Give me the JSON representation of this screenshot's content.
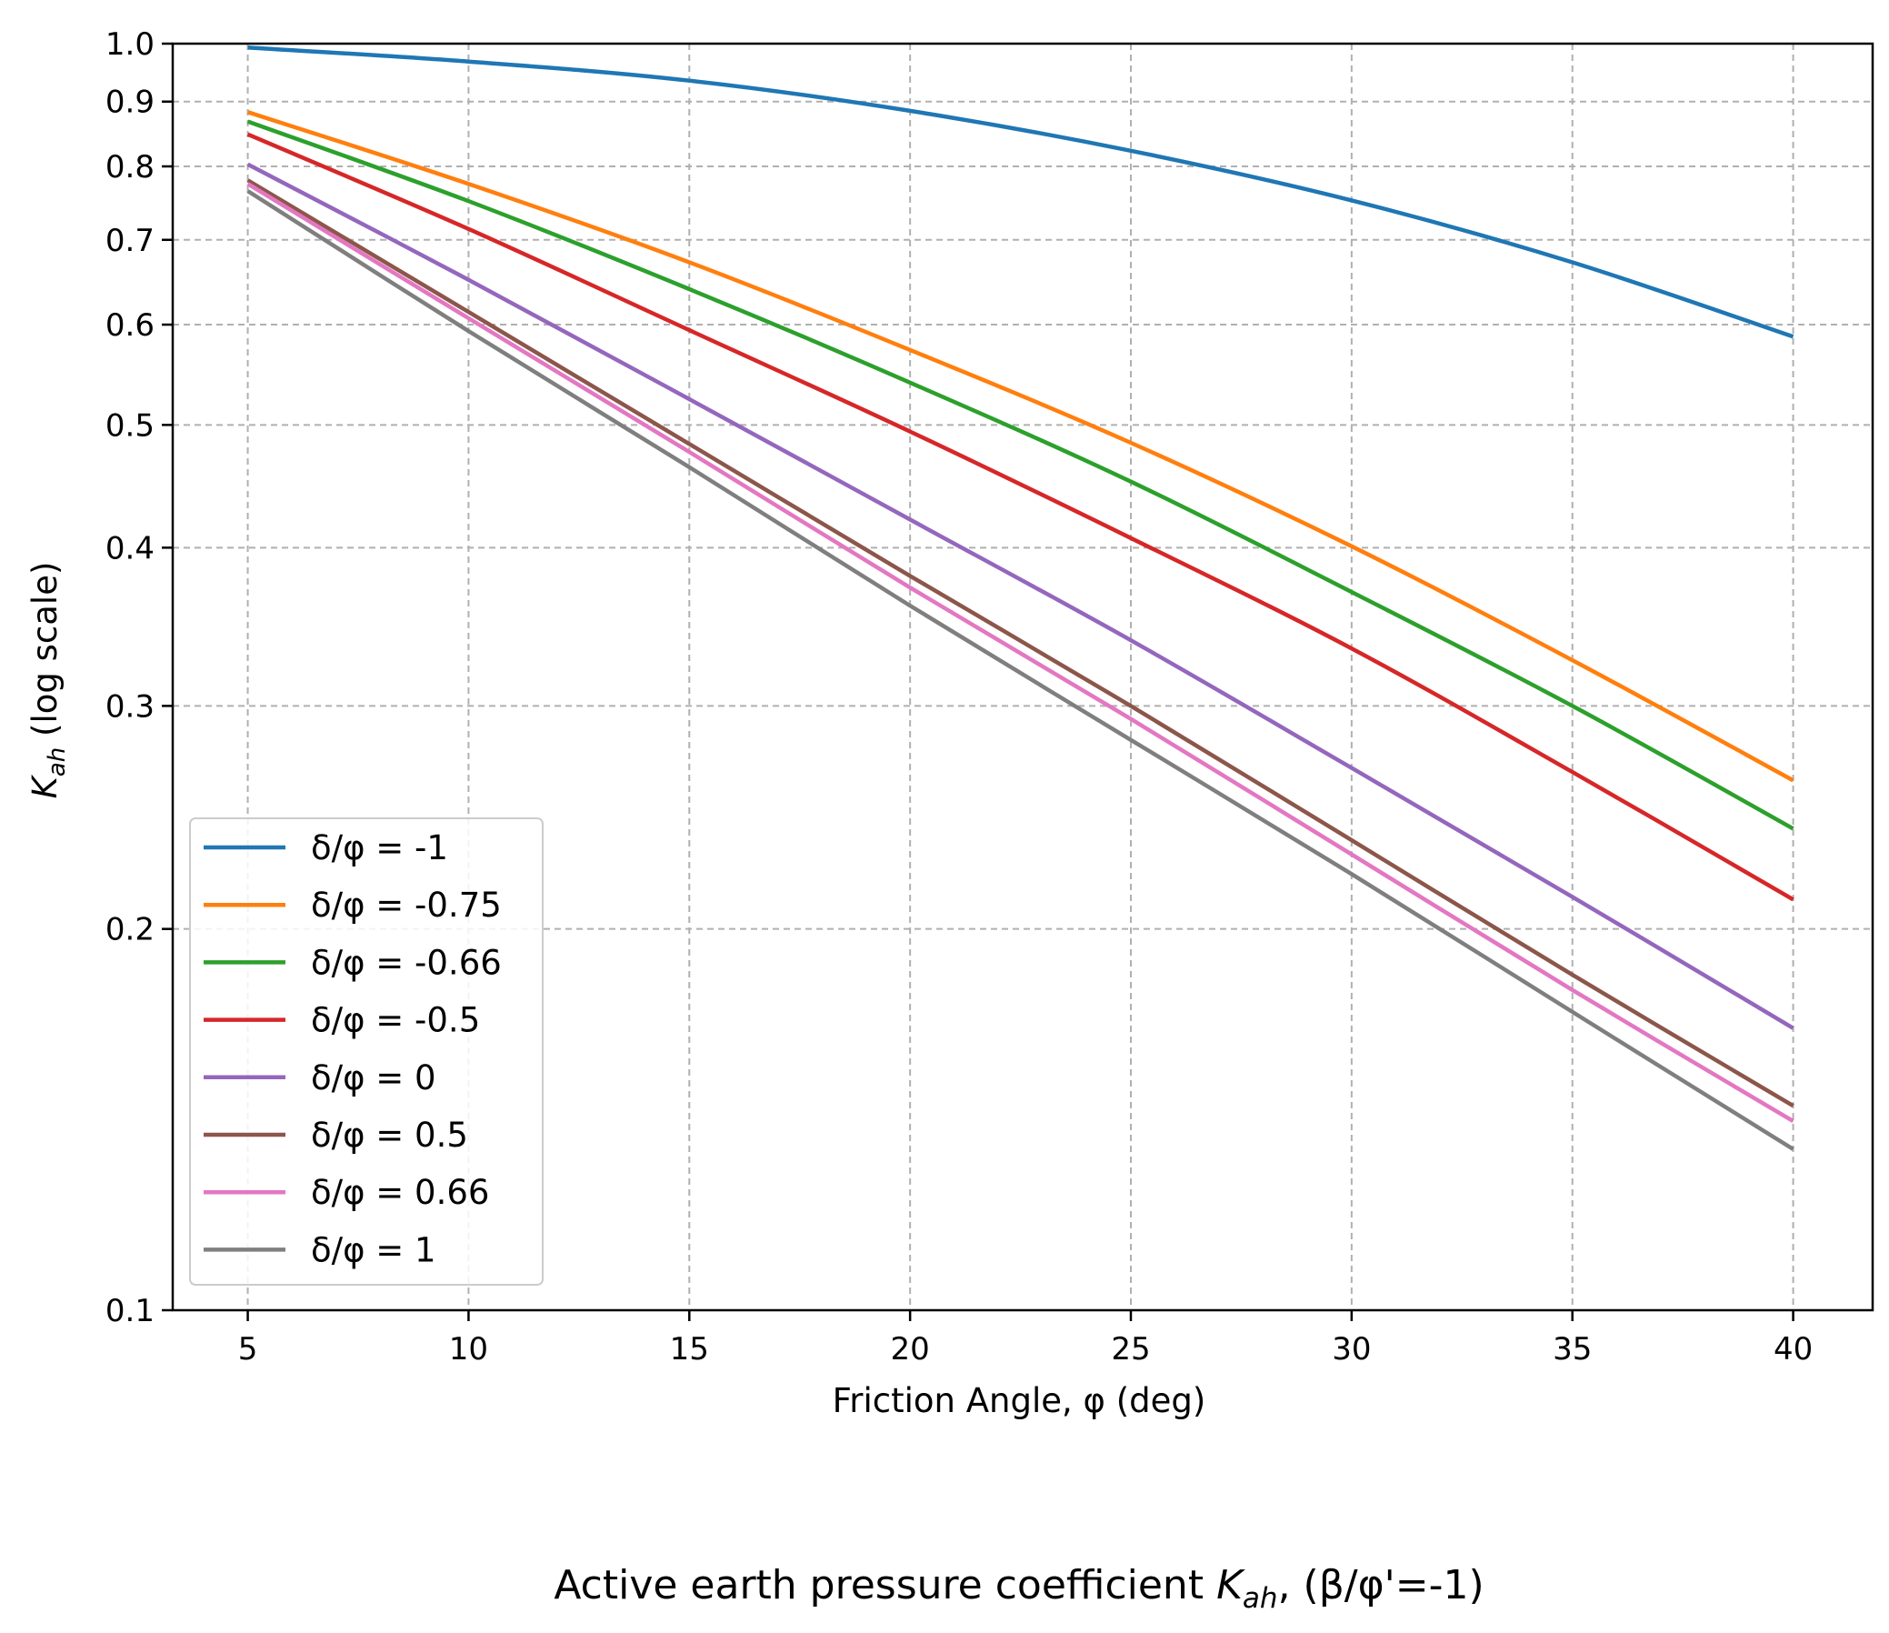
{
  "chart_data": {
    "type": "line",
    "title": "",
    "caption_prefix": "Active earth pressure coefficient ",
    "caption_symbol": "K",
    "caption_subscript": "ah",
    "caption_suffix": ", (β/φ'=-1)",
    "xlabel": "Friction Angle, φ (deg)",
    "ylabel_symbol": "K",
    "ylabel_subscript": "ah",
    "ylabel_suffix": " (log scale)",
    "yscale": "log",
    "xlim": [
      3.3,
      41.8
    ],
    "ylim": [
      0.1,
      1.0
    ],
    "x_ticks": [
      5,
      10,
      15,
      20,
      25,
      30,
      35,
      40
    ],
    "x_tick_labels": [
      "5",
      "10",
      "15",
      "20",
      "25",
      "30",
      "35",
      "40"
    ],
    "y_ticks": [
      0.1,
      0.2,
      0.3,
      0.4,
      0.5,
      0.6,
      0.7,
      0.8,
      0.9,
      1.0
    ],
    "y_tick_labels": [
      "0.1",
      "0.2",
      "0.3",
      "0.4",
      "0.5",
      "0.6",
      "0.7",
      "0.8",
      "0.9",
      "1.0"
    ],
    "grid": true,
    "legend_position": "lower-left",
    "x": [
      5,
      10,
      15,
      20,
      25,
      30,
      35,
      40
    ],
    "series": [
      {
        "name": "δ/φ = -1",
        "color": "#1f77b4",
        "values": [
          0.993,
          0.968,
          0.935,
          0.885,
          0.823,
          0.752,
          0.672,
          0.587
        ]
      },
      {
        "name": "δ/φ = -0.75",
        "color": "#ff7f0e",
        "values": [
          0.883,
          0.775,
          0.672,
          0.573,
          0.484,
          0.401,
          0.326,
          0.262
        ]
      },
      {
        "name": "δ/φ = -0.66",
        "color": "#2ca02c",
        "values": [
          0.868,
          0.751,
          0.64,
          0.54,
          0.451,
          0.369,
          0.3,
          0.24
        ]
      },
      {
        "name": "δ/φ = -0.5",
        "color": "#d62728",
        "values": [
          0.848,
          0.714,
          0.594,
          0.494,
          0.407,
          0.333,
          0.266,
          0.211
        ]
      },
      {
        "name": "δ/φ = 0",
        "color": "#9467bd",
        "values": [
          0.803,
          0.651,
          0.524,
          0.421,
          0.338,
          0.268,
          0.212,
          0.167
        ]
      },
      {
        "name": "δ/φ = 0.5",
        "color": "#8c564b",
        "values": [
          0.78,
          0.614,
          0.483,
          0.38,
          0.3,
          0.235,
          0.184,
          0.145
        ]
      },
      {
        "name": "δ/φ = 0.66",
        "color": "#e377c2",
        "values": [
          0.775,
          0.607,
          0.476,
          0.372,
          0.293,
          0.229,
          0.179,
          0.141
        ]
      },
      {
        "name": "δ/φ = 1",
        "color": "#7f7f7f",
        "values": [
          0.765,
          0.593,
          0.463,
          0.36,
          0.282,
          0.221,
          0.172,
          0.134
        ]
      }
    ]
  }
}
